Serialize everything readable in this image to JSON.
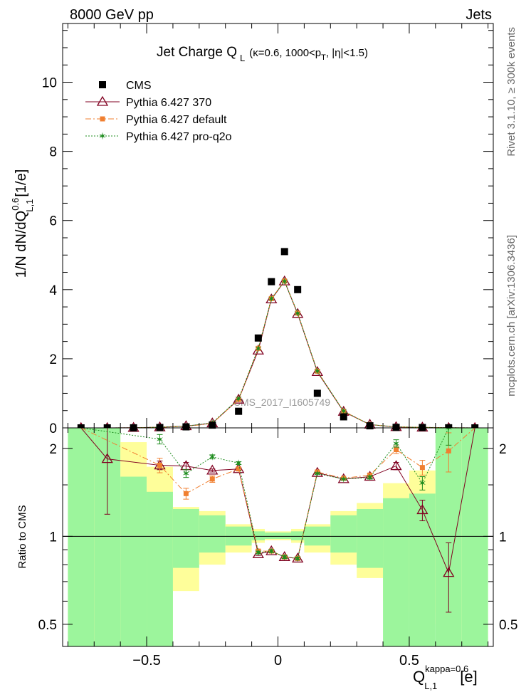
{
  "header": {
    "left": "8000 GeV pp",
    "right": "Jets"
  },
  "side_labels": {
    "rivet": "Rivet 3.1.10, ≥ 300k events",
    "mcplots": "mcplots.cern.ch [arXiv:1306.3436]"
  },
  "colors": {
    "cms": "#000000",
    "p370": "#800020",
    "pdefault": "#f07f30",
    "pq2o": "#1e8c1e",
    "band_inner": "#9cf59c",
    "band_outer": "#fefe9a"
  },
  "chart_data": [
    {
      "type": "line",
      "title": "Jet Charge Q",
      "title_sub": "L",
      "title_suffix": "(κ=0.6, 1000<p",
      "title_suffix_sub": "T",
      "title_suffix_end": ", |η|<1.5)",
      "ylabel": "1/N dN/dQ",
      "ylabel_sup": "0.6",
      "ylabel_sub": "L,1",
      "ylabel_unit": "[1/e]",
      "watermark": "CMS_2017_I1605749",
      "xlim": [
        -0.82,
        0.82
      ],
      "ylim": [
        0,
        11.7
      ],
      "yticks": [
        0,
        2,
        4,
        6,
        8,
        10
      ],
      "x": [
        -0.75,
        -0.65,
        -0.55,
        -0.45,
        -0.35,
        -0.25,
        -0.15,
        -0.075,
        -0.025,
        0.025,
        0.075,
        0.15,
        0.25,
        0.35,
        0.45,
        0.55,
        0.65,
        0.75
      ],
      "series": [
        {
          "name": "CMS",
          "values": [
            0.0,
            0.0,
            0.002,
            0.01,
            0.03,
            0.08,
            0.48,
            2.6,
            4.23,
            5.1,
            4.0,
            1.0,
            0.32,
            0.06,
            0.015,
            0.01,
            0.003,
            0.0
          ]
        },
        {
          "name": "Pythia 6.427 370",
          "values": [
            0.0,
            0.0,
            0.004,
            0.018,
            0.052,
            0.135,
            0.82,
            2.24,
            3.72,
            4.24,
            3.3,
            1.62,
            0.47,
            0.095,
            0.026,
            0.012,
            0.002,
            0.0
          ]
        },
        {
          "name": "Pythia 6.427 default",
          "values": [
            0.0,
            0.0,
            0.004,
            0.017,
            0.042,
            0.127,
            0.82,
            2.3,
            3.74,
            4.25,
            3.32,
            1.64,
            0.48,
            0.097,
            0.03,
            0.017,
            0.006,
            0.0
          ]
        },
        {
          "name": "Pythia 6.427 pro-q2o",
          "values": [
            0.0,
            0.0,
            0.004,
            0.021,
            0.05,
            0.145,
            0.84,
            2.3,
            3.74,
            4.24,
            3.32,
            1.64,
            0.48,
            0.095,
            0.03,
            0.015,
            0.006,
            0.0
          ]
        }
      ]
    },
    {
      "type": "line",
      "ylabel": "Ratio to CMS",
      "xlabel": "Q",
      "xlabel_sup": "kappa=0.6",
      "xlabel_sub": "L,1",
      "xlabel_unit": "[e]",
      "yscale": "log",
      "ylim": [
        0.42,
        2.35
      ],
      "yticks": [
        0.5,
        1,
        2
      ],
      "ytick_labels": [
        "0.5",
        "1",
        "2"
      ],
      "xticks": [
        -0.5,
        0,
        0.5
      ],
      "xtick_labels": [
        "−0.5",
        "0",
        "0.5"
      ],
      "bins": [
        -0.8,
        -0.7,
        -0.6,
        -0.5,
        -0.4,
        -0.3,
        -0.2,
        -0.1,
        -0.05,
        0.0,
        0.05,
        0.1,
        0.2,
        0.3,
        0.4,
        0.5,
        0.6,
        0.7,
        0.8
      ],
      "band_inner": {
        "lo": [
          0.42,
          0.42,
          0.42,
          0.42,
          0.42,
          0.42,
          0.42,
          0.42,
          0.42,
          0.42,
          0.42,
          0.42,
          0.42,
          0.42,
          0.42,
          0.42,
          0.42,
          0.42
        ],
        "hi": [
          2.35,
          2.35,
          1.6,
          1.42,
          1.24,
          1.18,
          1.08,
          1.04,
          1.03,
          1.03,
          1.04,
          1.08,
          1.18,
          1.24,
          1.35,
          1.4,
          2.35,
          2.35
        ]
      },
      "band_green_lo": [
        0.42,
        0.42,
        0.42,
        0.42,
        0.78,
        0.88,
        0.93,
        0.97,
        0.98,
        0.98,
        0.97,
        0.93,
        0.88,
        0.78,
        0.42,
        0.42,
        0.42,
        0.42
      ],
      "band_outer": {
        "lo": [
          0.42,
          0.42,
          0.42,
          0.42,
          0.42,
          0.42,
          0.42,
          0.42,
          0.42,
          0.42,
          0.42,
          0.42,
          0.42,
          0.42,
          0.42,
          0.42,
          0.42,
          0.42
        ],
        "hi": [
          2.35,
          2.35,
          2.1,
          1.73,
          1.26,
          1.22,
          1.1,
          1.06,
          1.04,
          1.04,
          1.06,
          1.1,
          1.22,
          1.3,
          1.52,
          1.68,
          1.78,
          2.35
        ],
        "lo_y": [
          0.42,
          0.42,
          0.42,
          0.42,
          0.65,
          0.8,
          0.88,
          0.95,
          0.97,
          0.97,
          0.95,
          0.88,
          0.8,
          0.72,
          0.6,
          0.55,
          0.5,
          0.42
        ]
      },
      "series": [
        {
          "name": "Pythia 6.427 370",
          "x": [
            -0.65,
            -0.45,
            -0.35,
            -0.25,
            -0.15,
            -0.075,
            -0.025,
            0.025,
            0.075,
            0.15,
            0.25,
            0.35,
            0.45,
            0.55,
            0.65
          ],
          "values": [
            1.84,
            1.75,
            1.74,
            1.68,
            1.7,
            0.87,
            0.89,
            0.85,
            0.84,
            1.65,
            1.57,
            1.6,
            1.74,
            1.23,
            0.75
          ],
          "err": [
            0.65,
            0.06,
            0.05,
            0.02,
            0.02,
            0.01,
            0.01,
            0.01,
            0.01,
            0.01,
            0.01,
            0.02,
            0.05,
            0.1,
            0.2
          ]
        },
        {
          "name": "Pythia 6.427 default",
          "x": [
            -0.45,
            -0.35,
            -0.25,
            -0.15,
            -0.075,
            -0.025,
            0.025,
            0.075,
            0.15,
            0.25,
            0.35,
            0.45,
            0.55,
            0.65
          ],
          "values": [
            1.75,
            1.4,
            1.57,
            1.7,
            0.89,
            0.89,
            0.85,
            0.84,
            1.66,
            1.58,
            1.62,
            1.98,
            1.72,
            1.96
          ],
          "err": [
            0.1,
            0.06,
            0.04,
            0.02,
            0.01,
            0.01,
            0.01,
            0.01,
            0.01,
            0.01,
            0.02,
            0.06,
            0.1,
            0.3
          ]
        },
        {
          "name": "Pythia 6.427 pro-q2o",
          "x": [
            -0.45,
            -0.35,
            -0.25,
            -0.15,
            -0.075,
            -0.025,
            0.025,
            0.075,
            0.15,
            0.25,
            0.35,
            0.45,
            0.55,
            0.65
          ],
          "values": [
            2.15,
            1.64,
            1.87,
            1.78,
            0.88,
            0.89,
            0.85,
            0.84,
            1.64,
            1.57,
            1.59,
            2.08,
            1.52,
            2.35
          ],
          "err": [
            0.08,
            0.05,
            0.03,
            0.02,
            0.01,
            0.01,
            0.01,
            0.01,
            0.01,
            0.01,
            0.02,
            0.06,
            0.08,
            0.3
          ]
        }
      ]
    }
  ]
}
